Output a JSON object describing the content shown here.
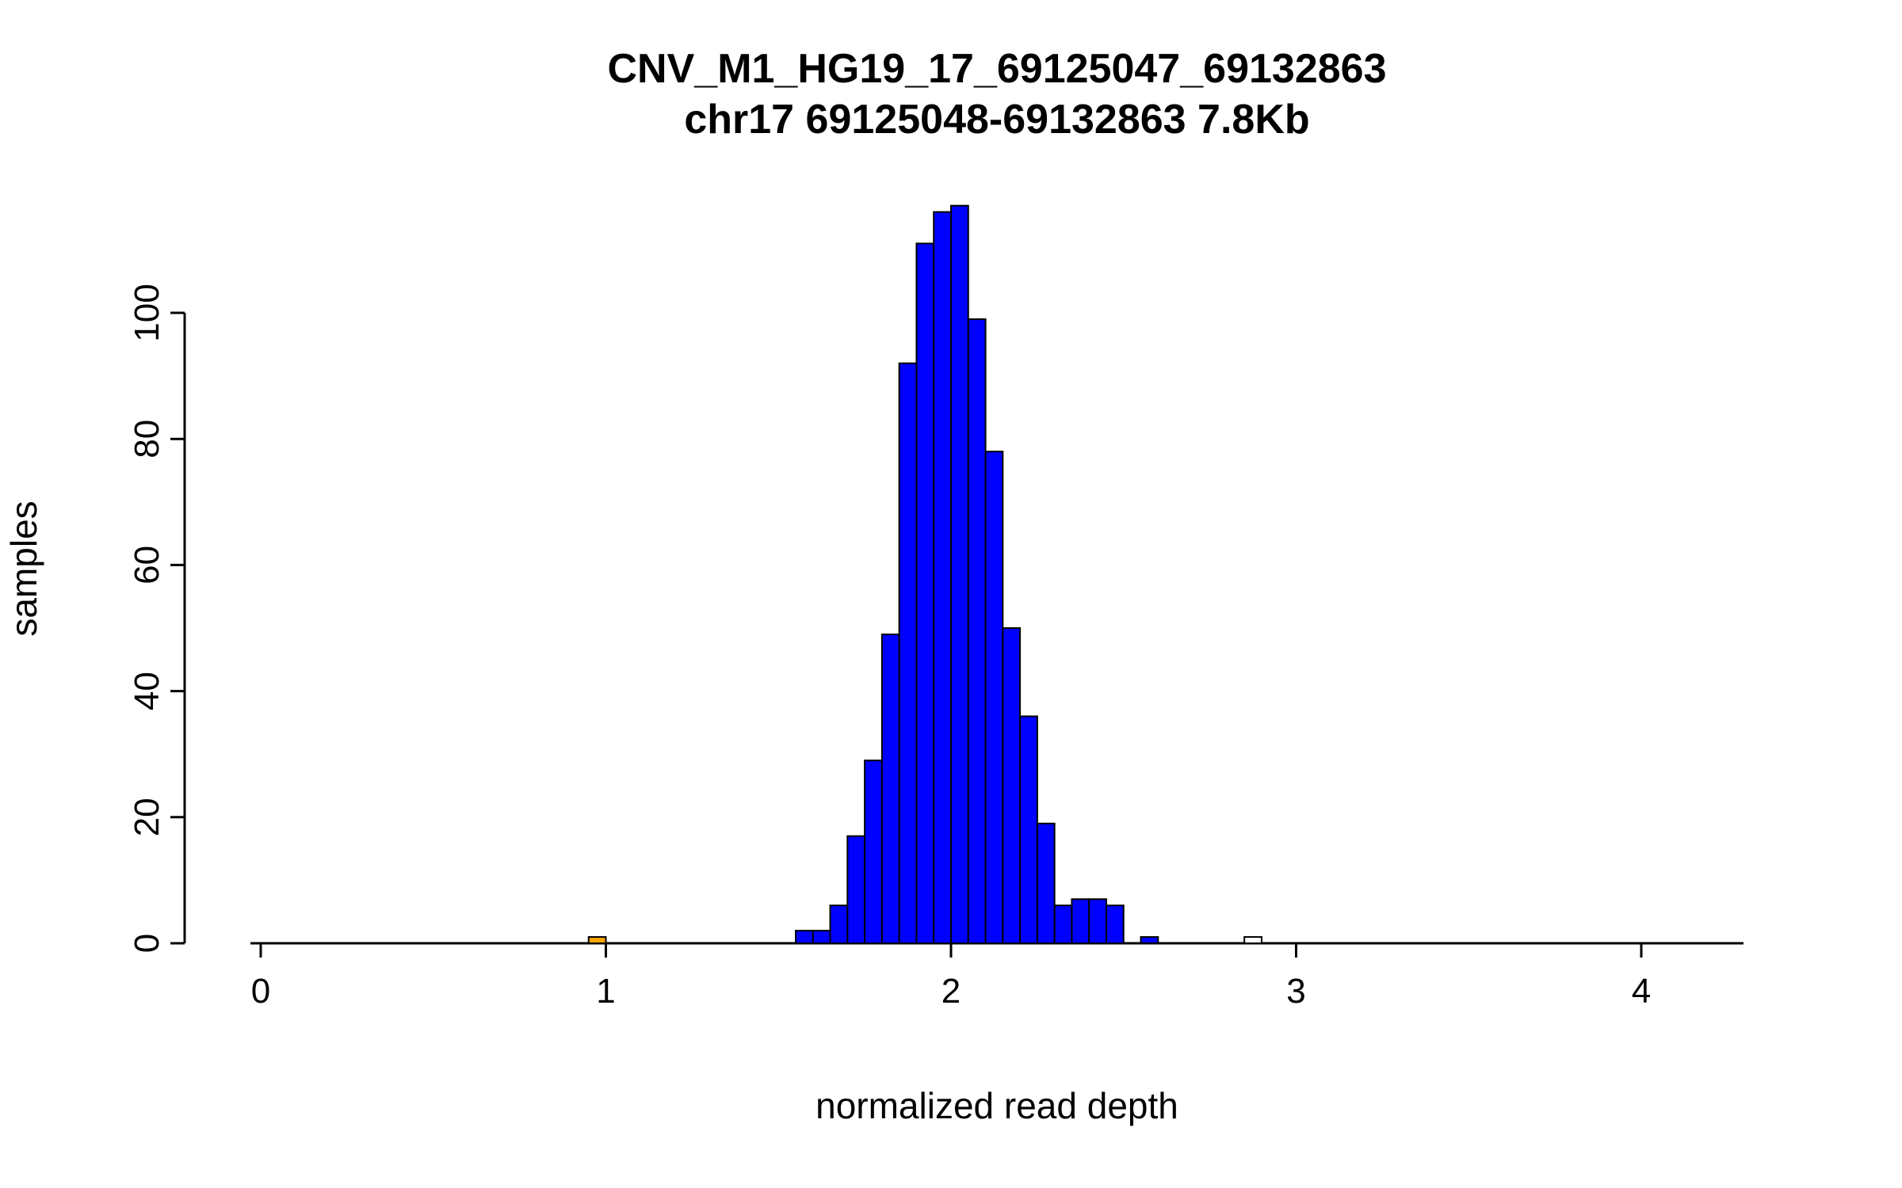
{
  "figure": {
    "title": "CNV_M1_HG19_17_69125047_69132863",
    "subtitle": "chr17 69125048-69132863 7.8Kb"
  },
  "chart_data": {
    "type": "bar",
    "subtype": "histogram",
    "title": "CNV_M1_HG19_17_69125047_69132863",
    "subtitle": "chr17 69125048-69132863 7.8Kb",
    "xlabel": "normalized read depth",
    "ylabel": "samples",
    "xlim": [
      -0.03,
      4.3
    ],
    "ylim": [
      0,
      119
    ],
    "x_ticks": [
      0,
      1,
      2,
      3,
      4
    ],
    "y_ticks": [
      0,
      20,
      40,
      60,
      80,
      100
    ],
    "bin_width": 0.05,
    "grid": false,
    "legend": "none",
    "colors": {
      "default_fill": "#0000FF",
      "low_outlier_fill": "#FFA500",
      "high_outlier_fill": "#FFFFFF",
      "stroke": "#000000"
    },
    "bins": [
      {
        "x": 0.95,
        "count": 1,
        "fill": "#FFA500"
      },
      {
        "x": 1.55,
        "count": 2,
        "fill": "#0000FF"
      },
      {
        "x": 1.6,
        "count": 2,
        "fill": "#0000FF"
      },
      {
        "x": 1.65,
        "count": 6,
        "fill": "#0000FF"
      },
      {
        "x": 1.7,
        "count": 17,
        "fill": "#0000FF"
      },
      {
        "x": 1.75,
        "count": 29,
        "fill": "#0000FF"
      },
      {
        "x": 1.8,
        "count": 49,
        "fill": "#0000FF"
      },
      {
        "x": 1.85,
        "count": 92,
        "fill": "#0000FF"
      },
      {
        "x": 1.9,
        "count": 111,
        "fill": "#0000FF"
      },
      {
        "x": 1.95,
        "count": 116,
        "fill": "#0000FF"
      },
      {
        "x": 2.0,
        "count": 117,
        "fill": "#0000FF"
      },
      {
        "x": 2.05,
        "count": 99,
        "fill": "#0000FF"
      },
      {
        "x": 2.1,
        "count": 78,
        "fill": "#0000FF"
      },
      {
        "x": 2.15,
        "count": 50,
        "fill": "#0000FF"
      },
      {
        "x": 2.2,
        "count": 36,
        "fill": "#0000FF"
      },
      {
        "x": 2.25,
        "count": 19,
        "fill": "#0000FF"
      },
      {
        "x": 2.3,
        "count": 6,
        "fill": "#0000FF"
      },
      {
        "x": 2.35,
        "count": 7,
        "fill": "#0000FF"
      },
      {
        "x": 2.4,
        "count": 7,
        "fill": "#0000FF"
      },
      {
        "x": 2.45,
        "count": 6,
        "fill": "#0000FF"
      },
      {
        "x": 2.55,
        "count": 1,
        "fill": "#0000FF"
      },
      {
        "x": 2.85,
        "count": 1,
        "fill": "#FFFFFF"
      }
    ]
  }
}
